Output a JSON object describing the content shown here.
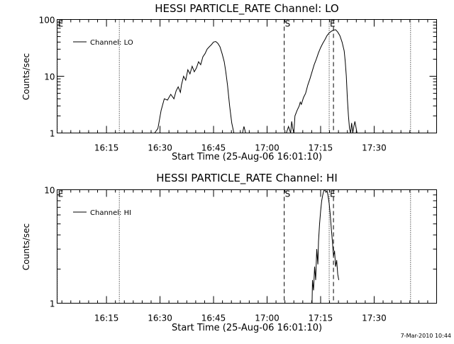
{
  "chart_data": [
    {
      "type": "line",
      "title": "HESSI PARTICLE_RATE Channel: LO",
      "xlabel": "Start Time (25-Aug-06 16:01:10)",
      "ylabel": "Counts/sec",
      "yscale": "log",
      "xlim": [
        16.0194,
        17.7917
      ],
      "ylim": [
        1,
        100
      ],
      "x_ticks": [
        {
          "value": 16.25,
          "label": "16:15"
        },
        {
          "value": 16.5,
          "label": "16:30"
        },
        {
          "value": 16.75,
          "label": "16:45"
        },
        {
          "value": 17.0,
          "label": "17:00"
        },
        {
          "value": 17.25,
          "label": "17:15"
        },
        {
          "value": 17.5,
          "label": "17:30"
        }
      ],
      "y_ticks": [
        {
          "value": 1,
          "label": "1"
        },
        {
          "value": 10,
          "label": "10"
        },
        {
          "value": 100,
          "label": "100"
        }
      ],
      "legend": {
        "label": "Channel: LO",
        "position": "top-left"
      },
      "markers": [
        {
          "x": 16.02,
          "style": "dotted",
          "label": "E"
        },
        {
          "x": 16.31,
          "style": "dotted",
          "label": ""
        },
        {
          "x": 17.08,
          "style": "dashed",
          "label": "S"
        },
        {
          "x": 17.29,
          "style": "dotted",
          "label": "E"
        },
        {
          "x": 17.31,
          "style": "dashed",
          "label": ""
        },
        {
          "x": 17.67,
          "style": "dotted",
          "label": ""
        }
      ],
      "series": [
        {
          "name": "Channel: LO",
          "x": [
            16.475,
            16.49,
            16.505,
            16.52,
            16.535,
            16.55,
            16.565,
            16.575,
            16.585,
            16.595,
            16.6,
            16.61,
            16.62,
            16.63,
            16.64,
            16.65,
            16.66,
            16.67,
            16.68,
            16.69,
            16.7,
            16.71,
            16.72,
            16.73,
            16.74,
            16.75,
            16.76,
            16.77,
            16.78,
            16.79,
            16.8,
            16.807,
            16.815,
            16.825,
            16.835,
            16.845,
            16.855,
            16.865,
            16.875,
            16.885,
            16.892,
            16.9,
            16.91
          ],
          "y": [
            1,
            1.2,
            2.5,
            4,
            3.8,
            4.8,
            4,
            5.5,
            6.5,
            5.2,
            7,
            10,
            8.5,
            13,
            11,
            15,
            12,
            14,
            18,
            16,
            22,
            25,
            30,
            33,
            36,
            40,
            41,
            38,
            33,
            25,
            18,
            12,
            7,
            3,
            1.5,
            1,
            1,
            1,
            1,
            1,
            1.3,
            1,
            1
          ]
        },
        {
          "x": [
            17.09,
            17.1,
            17.11,
            17.115,
            17.12,
            17.125,
            17.13,
            17.14,
            17.15,
            17.155,
            17.16,
            17.17,
            17.18,
            17.19,
            17.2,
            17.21,
            17.22,
            17.23,
            17.24,
            17.25,
            17.26,
            17.27,
            17.28,
            17.29,
            17.3,
            17.31,
            17.32,
            17.33,
            17.34,
            17.35,
            17.36,
            17.365,
            17.37,
            17.375,
            17.38,
            17.385,
            17.39,
            17.395,
            17.4,
            17.405,
            17.41,
            17.42
          ],
          "y": [
            1,
            1.3,
            1,
            1.6,
            1.2,
            1,
            2,
            2.5,
            3,
            3.5,
            3.2,
            4.2,
            5,
            7,
            9,
            12,
            16,
            20,
            26,
            32,
            38,
            44,
            52,
            58,
            62,
            65,
            66,
            60,
            52,
            40,
            28,
            18,
            10,
            4,
            2,
            1.2,
            1,
            1.5,
            1,
            1.3,
            1.6,
            1
          ]
        }
      ]
    },
    {
      "type": "line",
      "title": "HESSI PARTICLE_RATE Channel: HI",
      "xlabel": "Start Time (25-Aug-06 16:01:10)",
      "ylabel": "Counts/sec",
      "yscale": "log",
      "xlim": [
        16.0194,
        17.7917
      ],
      "ylim": [
        1,
        10
      ],
      "x_ticks": [
        {
          "value": 16.25,
          "label": "16:15"
        },
        {
          "value": 16.5,
          "label": "16:30"
        },
        {
          "value": 16.75,
          "label": "16:45"
        },
        {
          "value": 17.0,
          "label": "17:00"
        },
        {
          "value": 17.25,
          "label": "17:15"
        },
        {
          "value": 17.5,
          "label": "17:30"
        }
      ],
      "y_ticks": [
        {
          "value": 1,
          "label": "1"
        },
        {
          "value": 10,
          "label": "10"
        }
      ],
      "legend": {
        "label": "Channel: HI",
        "position": "top-left"
      },
      "markers": [
        {
          "x": 16.02,
          "style": "dotted",
          "label": "E"
        },
        {
          "x": 16.31,
          "style": "dotted",
          "label": ""
        },
        {
          "x": 17.08,
          "style": "dashed",
          "label": "S"
        },
        {
          "x": 17.29,
          "style": "dotted",
          "label": "E"
        },
        {
          "x": 17.31,
          "style": "dashed",
          "label": ""
        },
        {
          "x": 17.67,
          "style": "dotted",
          "label": ""
        }
      ],
      "series": [
        {
          "name": "Channel: HI",
          "x": [
            17.21,
            17.212,
            17.217,
            17.222,
            17.227,
            17.232,
            17.237,
            17.24,
            17.245,
            17.25,
            17.255,
            17.26,
            17.265,
            17.27,
            17.275,
            17.28,
            17.285,
            17.29,
            17.295,
            17.3,
            17.305,
            17.31,
            17.315,
            17.32,
            17.325,
            17.33,
            17.335
          ],
          "y": [
            1,
            1.6,
            1.3,
            2.1,
            1.6,
            3,
            2.2,
            3.5,
            5,
            6.5,
            8,
            9,
            9.8,
            10,
            9.5,
            9.8,
            8.8,
            7.5,
            6,
            4.5,
            3.5,
            2.6,
            2.9,
            2.1,
            2.4,
            1.8,
            1.6
          ]
        }
      ]
    }
  ],
  "footer": {
    "timestamp": "7-Mar-2010 10:44"
  }
}
